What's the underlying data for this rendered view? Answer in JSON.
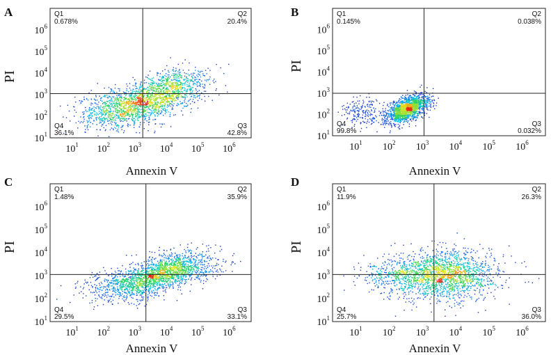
{
  "figure": {
    "axis_labels": {
      "x": "Annexin V",
      "y": "PI"
    }
  },
  "chart_data": [
    {
      "type": "scatter",
      "panel": "A",
      "xlabel": "Annexin V",
      "ylabel": "PI",
      "xlim_log10": [
        0.3,
        6.7
      ],
      "ylim_log10": [
        1,
        7
      ],
      "xticks": [
        "10^1",
        "10^2",
        "10^3",
        "10^4",
        "10^5",
        "10^6"
      ],
      "yticks": [
        "10^1",
        "10^2",
        "10^3",
        "10^4",
        "10^5",
        "10^6"
      ],
      "gate_log10": {
        "x": 3.25,
        "y": 3.05
      },
      "quadrants": [
        {
          "name": "Q1",
          "value": "0.678%"
        },
        {
          "name": "Q2",
          "value": "20.4%"
        },
        {
          "name": "Q3",
          "value": "42.8%"
        },
        {
          "name": "Q4",
          "value": "36.1%"
        }
      ],
      "population_log10": [
        {
          "cx": 3.4,
          "cy": 2.7,
          "sx": 0.85,
          "sy": 0.55,
          "rho": 0.55,
          "n": 1500
        },
        {
          "cx": 2.2,
          "cy": 2.3,
          "sx": 0.6,
          "sy": 0.45,
          "rho": 0.2,
          "n": 350
        },
        {
          "cx": 4.3,
          "cy": 3.5,
          "sx": 0.55,
          "sy": 0.4,
          "rho": 0.3,
          "n": 350
        }
      ]
    },
    {
      "type": "scatter",
      "panel": "B",
      "xlabel": "Annexin V",
      "ylabel": "PI",
      "xlim_log10": [
        0.3,
        6.7
      ],
      "ylim_log10": [
        1,
        7
      ],
      "xticks": [
        "10^1",
        "10^2",
        "10^3",
        "10^4",
        "10^5",
        "10^6"
      ],
      "yticks": [
        "10^1",
        "10^2",
        "10^3",
        "10^4",
        "10^5",
        "10^6"
      ],
      "gate_log10": {
        "x": 3.05,
        "y": 3.0
      },
      "quadrants": [
        {
          "name": "Q1",
          "value": "0.145%"
        },
        {
          "name": "Q2",
          "value": "0.038%"
        },
        {
          "name": "Q3",
          "value": "0.032%"
        },
        {
          "name": "Q4",
          "value": "99.8%"
        }
      ],
      "population_log10": [
        {
          "cx": 2.55,
          "cy": 2.25,
          "sx": 0.32,
          "sy": 0.33,
          "rho": 0.55,
          "n": 1600
        },
        {
          "cx": 1.25,
          "cy": 2.1,
          "sx": 0.35,
          "sy": 0.35,
          "rho": 0.0,
          "n": 200
        }
      ]
    },
    {
      "type": "scatter",
      "panel": "C",
      "xlabel": "Annexin V",
      "ylabel": "PI",
      "xlim_log10": [
        0.3,
        6.7
      ],
      "ylim_log10": [
        1,
        7
      ],
      "xticks": [
        "10^1",
        "10^2",
        "10^3",
        "10^4",
        "10^5",
        "10^6"
      ],
      "yticks": [
        "10^1",
        "10^2",
        "10^3",
        "10^4",
        "10^5",
        "10^6"
      ],
      "gate_log10": {
        "x": 3.35,
        "y": 3.05
      },
      "quadrants": [
        {
          "name": "Q1",
          "value": "1.48%"
        },
        {
          "name": "Q2",
          "value": "35.9%"
        },
        {
          "name": "Q3",
          "value": "33.1%"
        },
        {
          "name": "Q4",
          "value": "29.5%"
        }
      ],
      "population_log10": [
        {
          "cx": 3.6,
          "cy": 2.95,
          "sx": 0.75,
          "sy": 0.5,
          "rho": 0.6,
          "n": 1500
        },
        {
          "cx": 4.6,
          "cy": 3.3,
          "sx": 0.6,
          "sy": 0.35,
          "rho": 0.2,
          "n": 450
        },
        {
          "cx": 2.3,
          "cy": 2.6,
          "sx": 0.55,
          "sy": 0.35,
          "rho": 0.2,
          "n": 250
        }
      ]
    },
    {
      "type": "scatter",
      "panel": "D",
      "xlabel": "Annexin V",
      "ylabel": "PI",
      "xlim_log10": [
        0.3,
        6.7
      ],
      "ylim_log10": [
        1,
        7
      ],
      "xticks": [
        "10^1",
        "10^2",
        "10^3",
        "10^4",
        "10^5",
        "10^6"
      ],
      "yticks": [
        "10^1",
        "10^2",
        "10^3",
        "10^4",
        "10^5",
        "10^6"
      ],
      "gate_log10": {
        "x": 3.35,
        "y": 3.05
      },
      "quadrants": [
        {
          "name": "Q1",
          "value": "11.9%"
        },
        {
          "name": "Q2",
          "value": "26.3%"
        },
        {
          "name": "Q3",
          "value": "36.0%"
        },
        {
          "name": "Q4",
          "value": "25.7%"
        }
      ],
      "population_log10": [
        {
          "cx": 3.65,
          "cy": 3.0,
          "sx": 0.8,
          "sy": 0.55,
          "rho": 0.05,
          "n": 1800
        },
        {
          "cx": 2.1,
          "cy": 3.05,
          "sx": 0.6,
          "sy": 0.3,
          "rho": 0.0,
          "n": 300
        }
      ]
    }
  ]
}
